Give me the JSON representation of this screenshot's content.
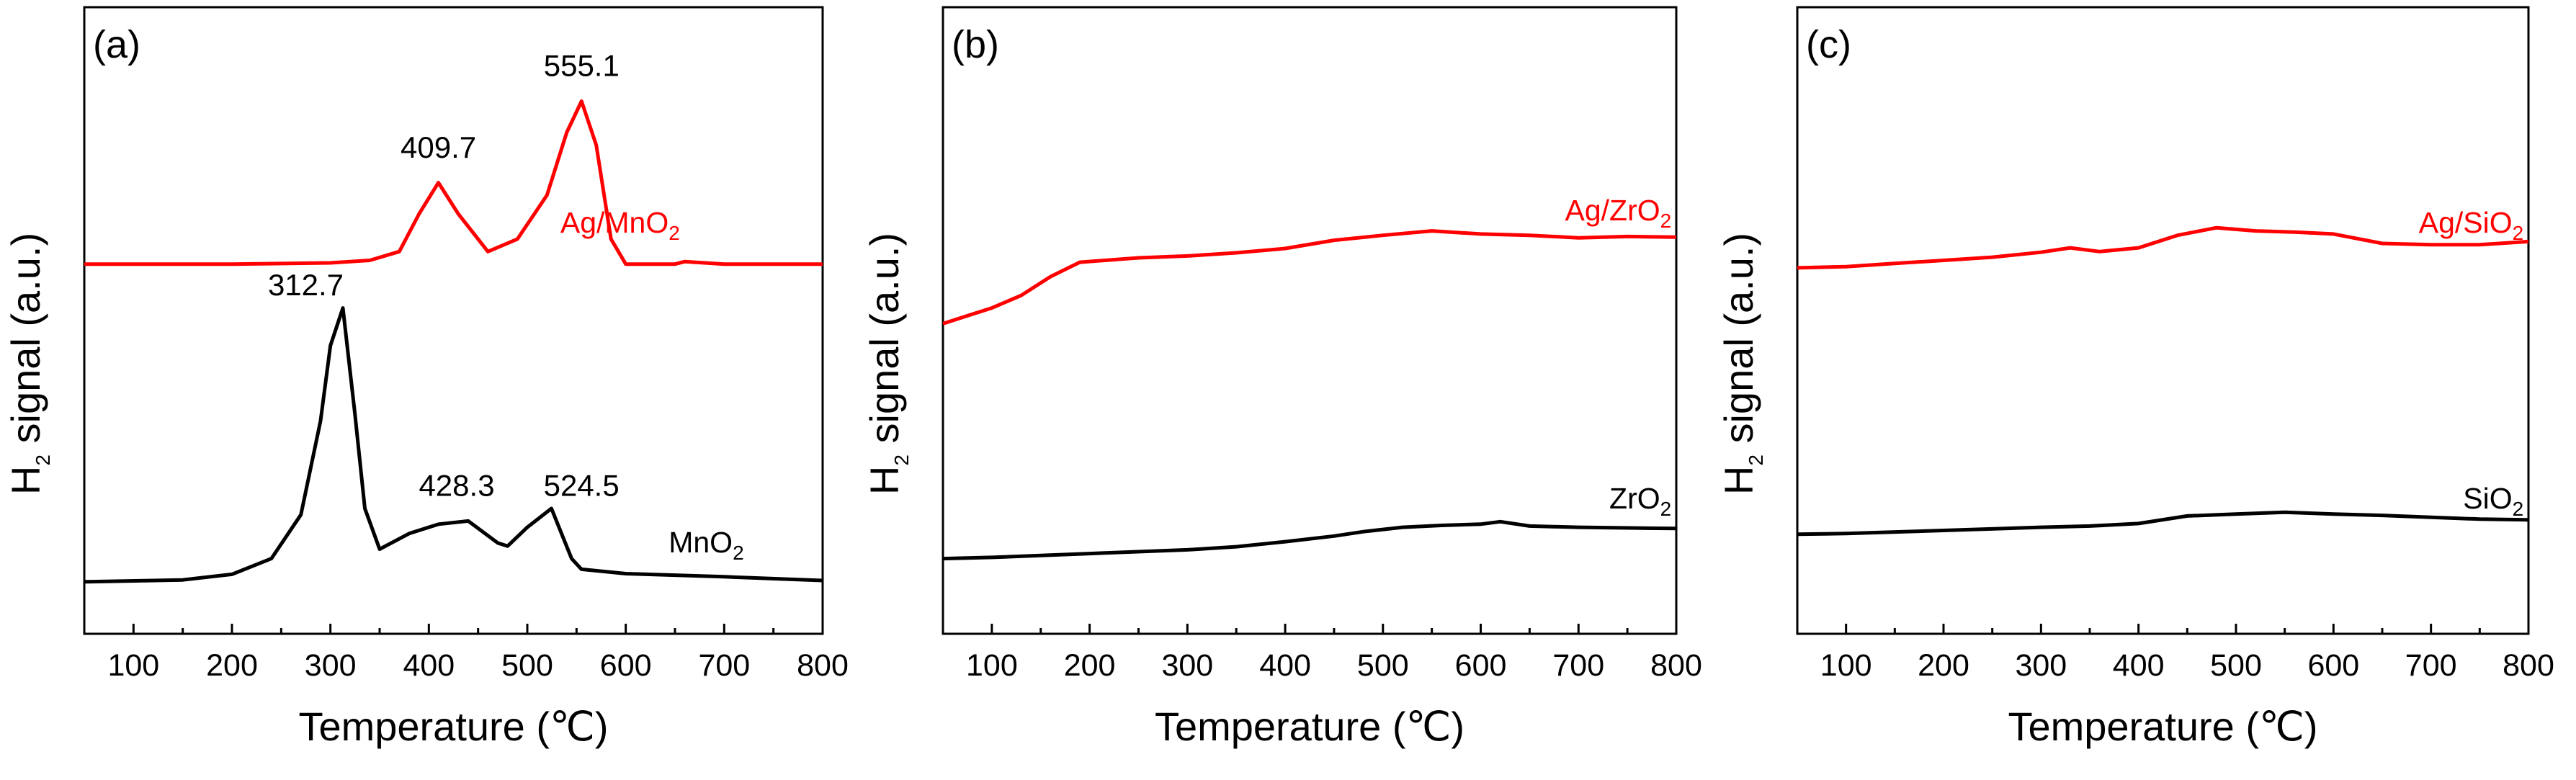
{
  "chart_data": [
    {
      "type": "line",
      "panel_label": "(a)",
      "title": "",
      "xlabel": "Temperature",
      "xunit": "(℃)",
      "ylabel_main": "H",
      "ylabel_sub": "2",
      "ylabel_rest": " signal (a.u.)",
      "xlim": [
        50,
        800
      ],
      "ylim": [
        0,
        100
      ],
      "xticks": [
        100,
        200,
        300,
        400,
        500,
        600,
        700,
        800
      ],
      "series": [
        {
          "name": "Ag/MnO2",
          "label_main": "Ag/MnO",
          "label_sub": "2",
          "label_x": 655,
          "label_y": 64,
          "color": "#ff0000",
          "x": [
            50,
            200,
            300,
            340,
            370,
            390,
            409.7,
            430,
            460,
            490,
            520,
            540,
            555.1,
            570,
            585,
            600,
            650,
            660,
            700,
            800
          ],
          "y": [
            59,
            59,
            59.2,
            59.6,
            61,
            67,
            72,
            67,
            61,
            63,
            70,
            80,
            85,
            78,
            63,
            59,
            59,
            59.4,
            59,
            59
          ]
        },
        {
          "name": "MnO2",
          "label_main": "MnO",
          "label_sub": "2",
          "label_x": 720,
          "label_y": 13,
          "color": "#000000",
          "x": [
            50,
            150,
            200,
            240,
            270,
            290,
            300,
            312.7,
            325,
            335,
            350,
            380,
            410,
            440,
            470,
            480,
            500,
            524.5,
            545,
            555,
            600,
            700,
            800
          ],
          "y": [
            8.3,
            8.6,
            9.5,
            12,
            19,
            34,
            46,
            52,
            35,
            20,
            13.5,
            16,
            17.5,
            18,
            14.5,
            14,
            17,
            20,
            12,
            10.3,
            9.6,
            9.1,
            8.5
          ]
        }
      ],
      "annotations": [
        {
          "text": "555.1",
          "x": 555.1,
          "y": 89
        },
        {
          "text": "409.7",
          "x": 409.7,
          "y": 76
        },
        {
          "text": "312.7",
          "x": 275,
          "y": 54
        },
        {
          "text": "428.3",
          "x": 428.3,
          "y": 22
        },
        {
          "text": "524.5",
          "x": 555,
          "y": 22
        }
      ]
    },
    {
      "type": "line",
      "panel_label": "(b)",
      "title": "",
      "xlabel": "Temperature",
      "xunit": "(℃)",
      "ylabel_main": "H",
      "ylabel_sub": "2",
      "ylabel_rest": " signal (a.u.)",
      "xlim": [
        50,
        800
      ],
      "ylim": [
        0,
        100
      ],
      "xticks": [
        100,
        200,
        300,
        400,
        500,
        600,
        700,
        800
      ],
      "series": [
        {
          "name": "Ag/ZrO2",
          "label_main": "Ag/ZrO",
          "label_sub": "2",
          "label_x": 795,
          "label_y": 66,
          "color": "#ff0000",
          "x": [
            50,
            80,
            100,
            130,
            160,
            190,
            250,
            300,
            350,
            400,
            450,
            500,
            550,
            600,
            650,
            700,
            750,
            800
          ],
          "y": [
            49.5,
            51,
            52,
            54,
            57,
            59.3,
            60,
            60.3,
            60.8,
            61.5,
            62.8,
            63.6,
            64.3,
            63.8,
            63.6,
            63.2,
            63.4,
            63.3
          ]
        },
        {
          "name": "ZrO2",
          "label_main": "ZrO",
          "label_sub": "2",
          "label_x": 795,
          "label_y": 20,
          "color": "#000000",
          "x": [
            50,
            100,
            200,
            300,
            350,
            400,
            450,
            480,
            520,
            560,
            600,
            620,
            650,
            700,
            750,
            800
          ],
          "y": [
            12,
            12.2,
            12.8,
            13.4,
            13.9,
            14.7,
            15.6,
            16.3,
            17,
            17.3,
            17.5,
            17.9,
            17.2,
            17,
            16.9,
            16.8
          ]
        }
      ],
      "annotations": []
    },
    {
      "type": "line",
      "panel_label": "(c)",
      "title": "",
      "xlabel": "Temperature",
      "xunit": "(℃)",
      "ylabel_main": "H",
      "ylabel_sub": "2",
      "ylabel_rest": " signal (a.u.)",
      "xlim": [
        50,
        800
      ],
      "ylim": [
        0,
        100
      ],
      "xticks": [
        100,
        200,
        300,
        400,
        500,
        600,
        700,
        800
      ],
      "series": [
        {
          "name": "Ag/SiO2",
          "label_main": "Ag/SiO",
          "label_sub": "2",
          "label_x": 795,
          "label_y": 64,
          "color": "#ff0000",
          "x": [
            50,
            100,
            150,
            200,
            250,
            300,
            330,
            360,
            400,
            440,
            480,
            520,
            560,
            600,
            650,
            700,
            750,
            800
          ],
          "y": [
            58.4,
            58.6,
            59.1,
            59.6,
            60.1,
            60.9,
            61.6,
            61,
            61.6,
            63.6,
            64.8,
            64.3,
            64.1,
            63.8,
            62.3,
            62.1,
            62.1,
            62.6
          ]
        },
        {
          "name": "SiO2",
          "label_main": "SiO",
          "label_sub": "2",
          "label_x": 795,
          "label_y": 20,
          "color": "#000000",
          "x": [
            50,
            100,
            200,
            300,
            350,
            400,
            450,
            500,
            550,
            600,
            650,
            700,
            750,
            800
          ],
          "y": [
            15.9,
            16,
            16.5,
            17,
            17.2,
            17.6,
            18.8,
            19.1,
            19.4,
            19.1,
            18.9,
            18.6,
            18.3,
            18.2
          ]
        }
      ],
      "annotations": []
    }
  ]
}
